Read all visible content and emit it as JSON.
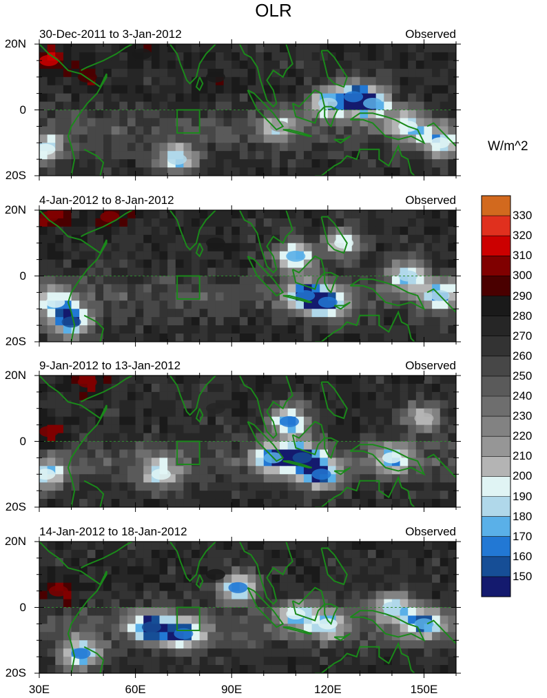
{
  "title": "OLR",
  "colorbar": {
    "units": "W/m^2",
    "levels": [
      "330",
      "320",
      "310",
      "300",
      "290",
      "280",
      "270",
      "260",
      "250",
      "240",
      "230",
      "220",
      "210",
      "200",
      "190",
      "180",
      "170",
      "160",
      "150"
    ],
    "colors": [
      "#d2691e",
      "#e0301e",
      "#cc0000",
      "#800000",
      "#4a0000",
      "#1a1a1a",
      "#262626",
      "#333333",
      "#474747",
      "#5a5a5a",
      "#6e6e6e",
      "#828282",
      "#969696",
      "#b4b4b4",
      "#e0f4f4",
      "#b0d8ea",
      "#5ab0e8",
      "#2278d4",
      "#164e96",
      "#141a6e"
    ]
  },
  "axes": {
    "x_ticks": [
      "30E",
      "60E",
      "90E",
      "120E",
      "150E"
    ],
    "y_ticks": [
      "20N",
      "0",
      "20S"
    ]
  },
  "panels": [
    {
      "left": "30-Dec-2011 to 3-Jan-2012",
      "right": "Observed"
    },
    {
      "left": "4-Jan-2012 to 8-Jan-2012",
      "right": "Observed"
    },
    {
      "left": "9-Jan-2012 to 13-Jan-2012",
      "right": "Observed"
    },
    {
      "left": "14-Jan-2012 to 18-Jan-2012",
      "right": "Observed"
    }
  ],
  "chart_data": [
    {
      "type": "heatmap",
      "title": "30-Dec-2011 to 3-Jan-2012",
      "x_range": [
        30,
        160
      ],
      "y_range": [
        -20,
        20
      ],
      "features": [
        {
          "lon": 33,
          "lat": 15,
          "value": 310
        },
        {
          "lon": 62,
          "lat": 17,
          "value": 280
        },
        {
          "lon": 120,
          "lat": 2,
          "value": 180
        },
        {
          "lon": 128,
          "lat": 4,
          "value": 165
        },
        {
          "lon": 134,
          "lat": 2,
          "value": 170
        },
        {
          "lon": 145,
          "lat": -5,
          "value": 190
        },
        {
          "lon": 155,
          "lat": -10,
          "value": 190
        },
        {
          "lon": 73,
          "lat": -15,
          "value": 180
        },
        {
          "lon": 32,
          "lat": -12,
          "value": 190
        },
        {
          "lon": 105,
          "lat": -5,
          "value": 210
        },
        {
          "lon": 45,
          "lat": 10,
          "value": 290
        },
        {
          "lon": 85,
          "lat": 10,
          "value": 280
        }
      ]
    },
    {
      "type": "heatmap",
      "title": "4-Jan-2012 to 8-Jan-2012",
      "x_range": [
        30,
        160
      ],
      "y_range": [
        -20,
        20
      ],
      "features": [
        {
          "lon": 33,
          "lat": 18,
          "value": 300
        },
        {
          "lon": 52,
          "lat": 18,
          "value": 300
        },
        {
          "lon": 110,
          "lat": 6,
          "value": 170
        },
        {
          "lon": 113,
          "lat": -6,
          "value": 165
        },
        {
          "lon": 120,
          "lat": -8,
          "value": 160
        },
        {
          "lon": 125,
          "lat": 10,
          "value": 190
        },
        {
          "lon": 145,
          "lat": 0,
          "value": 180
        },
        {
          "lon": 155,
          "lat": -6,
          "value": 180
        },
        {
          "lon": 40,
          "lat": -14,
          "value": 150
        },
        {
          "lon": 35,
          "lat": -8,
          "value": 190
        },
        {
          "lon": 85,
          "lat": 10,
          "value": 280
        }
      ]
    },
    {
      "type": "heatmap",
      "title": "9-Jan-2012 to 13-Jan-2012",
      "x_range": [
        30,
        160
      ],
      "y_range": [
        -20,
        20
      ],
      "features": [
        {
          "lon": 45,
          "lat": 18,
          "value": 300
        },
        {
          "lon": 33,
          "lat": 3,
          "value": 300
        },
        {
          "lon": 108,
          "lat": 6,
          "value": 160
        },
        {
          "lon": 112,
          "lat": -5,
          "value": 155
        },
        {
          "lon": 118,
          "lat": -10,
          "value": 160
        },
        {
          "lon": 103,
          "lat": -5,
          "value": 170
        },
        {
          "lon": 140,
          "lat": -5,
          "value": 190
        },
        {
          "lon": 150,
          "lat": 7,
          "value": 200
        },
        {
          "lon": 68,
          "lat": -10,
          "value": 190
        },
        {
          "lon": 32,
          "lat": -10,
          "value": 190
        },
        {
          "lon": 85,
          "lat": 10,
          "value": 270
        }
      ]
    },
    {
      "type": "heatmap",
      "title": "14-Jan-2012 to 18-Jan-2012",
      "x_range": [
        30,
        160
      ],
      "y_range": [
        -20,
        20
      ],
      "features": [
        {
          "lon": 36,
          "lat": 5,
          "value": 300
        },
        {
          "lon": 65,
          "lat": -6,
          "value": 150
        },
        {
          "lon": 75,
          "lat": -8,
          "value": 160
        },
        {
          "lon": 92,
          "lat": 6,
          "value": 160
        },
        {
          "lon": 110,
          "lat": -2,
          "value": 190
        },
        {
          "lon": 120,
          "lat": -5,
          "value": 190
        },
        {
          "lon": 140,
          "lat": 0,
          "value": 180
        },
        {
          "lon": 150,
          "lat": -5,
          "value": 170
        },
        {
          "lon": 43,
          "lat": -14,
          "value": 165
        },
        {
          "lon": 85,
          "lat": 10,
          "value": 280
        }
      ]
    }
  ]
}
